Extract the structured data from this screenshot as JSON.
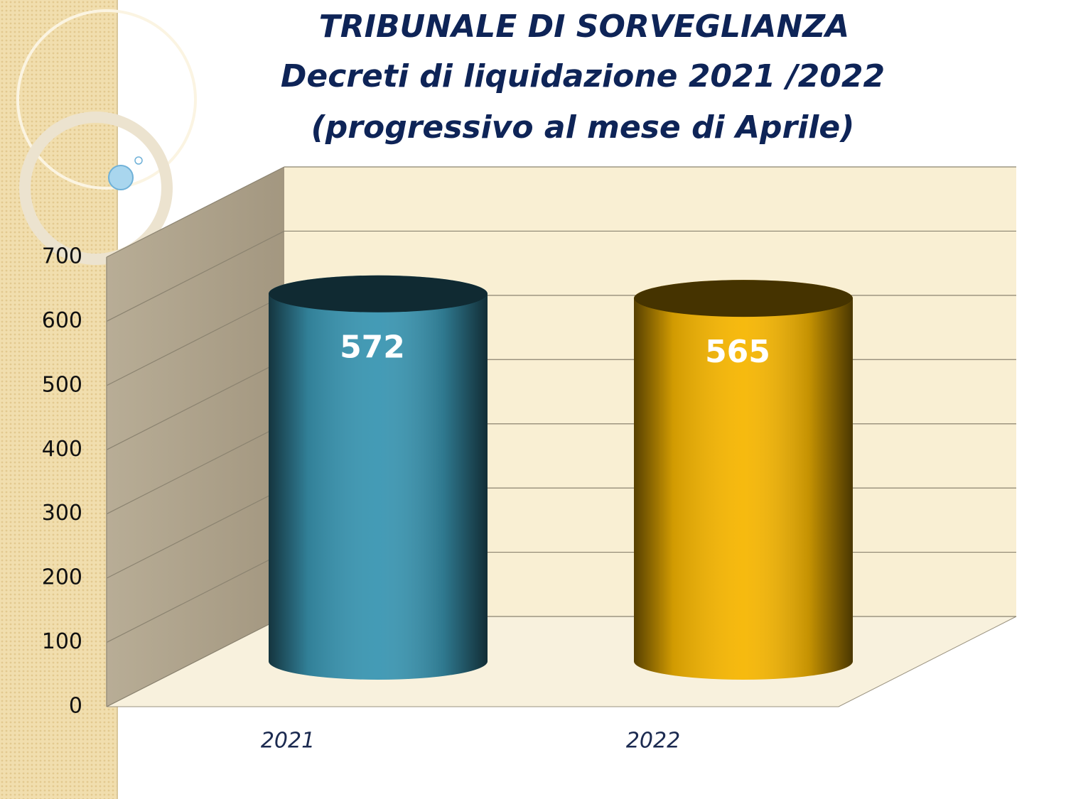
{
  "chart_data": {
    "type": "bar",
    "title": [
      "TRIBUNALE DI SORVEGLIANZA",
      "Decreti di liquidazione 2021 /2022",
      "(progressivo al mese di Aprile)"
    ],
    "categories": [
      "2021",
      "2022"
    ],
    "values": [
      572,
      565
    ],
    "colors": [
      "#3a96b2",
      "#f6b602"
    ],
    "ylim": [
      0,
      700
    ],
    "yticks": [
      0,
      100,
      200,
      300,
      400,
      500,
      600,
      700
    ],
    "grid": true
  }
}
